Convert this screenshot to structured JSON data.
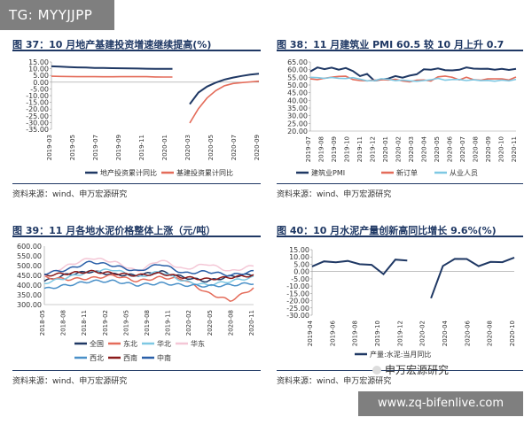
{
  "watermark_top": "TG: MYYJJPP",
  "watermark_bottom": "www.zq-bifenlive.com",
  "brand": "申万宏源研究",
  "panels": [
    {
      "title": "图 37：10 月地产基建投资增速继续提高(%)",
      "source": "资料来源：wind、申万宏源研究"
    },
    {
      "title": "图 38：11 月建筑业 PMI 60.5 较 10 月上升 0.7",
      "source": "资料来源：wind、申万宏源研究"
    },
    {
      "title": "图 39：11 月各地水泥价格整体上涨（元/吨）",
      "source": "资料来源：wind、申万宏源研究"
    },
    {
      "title": "图 40：10 月水泥产量创新高同比增长 9.6%(%)",
      "source": "资料来源：wind、申万宏源研究"
    }
  ],
  "chart_data": [
    {
      "type": "line",
      "yticks": [
        15,
        10,
        5,
        0,
        -5,
        -10,
        -15,
        -20,
        -25,
        -30,
        -35
      ],
      "ylim": [
        -35,
        15
      ],
      "xticks": [
        "2019-03",
        "2019-05",
        "2019-07",
        "2019-09",
        "2019-11",
        "2020-01",
        "2020-03",
        "2020-05",
        "2020-07",
        "2020-09"
      ],
      "series": [
        {
          "name": "地产投资累计同比",
          "color": "#1f3864",
          "values": [
            11.8,
            11.5,
            11.2,
            11.0,
            10.9,
            10.6,
            10.5,
            10.4,
            10.3,
            10.2,
            10.1,
            10.0,
            9.9,
            9.9,
            9.9,
            null,
            -16.3,
            -7.7,
            -3.3,
            -0.3,
            1.9,
            3.4,
            4.6,
            5.6,
            6.3
          ]
        },
        {
          "name": "基建投资累计同比",
          "color": "#e46c5a",
          "values": [
            4.4,
            4.3,
            4.2,
            4.1,
            4.1,
            4.1,
            4.0,
            4.0,
            4.1,
            4.1,
            4.1,
            4.1,
            3.9,
            3.8,
            3.8,
            null,
            -30.3,
            -19.7,
            -11.8,
            -6.3,
            -2.7,
            -1.0,
            -0.3,
            0.2,
            0.7
          ]
        }
      ]
    },
    {
      "type": "line",
      "yticks": [
        65,
        60,
        55,
        50,
        45,
        40,
        35,
        30,
        25,
        20
      ],
      "ylim": [
        20,
        65
      ],
      "xticks": [
        "2019-07",
        "2019-08",
        "2019-09",
        "2019-10",
        "2019-11",
        "2019-12",
        "2020-01",
        "2020-02",
        "2020-03",
        "2020-04",
        "2020-05",
        "2020-06",
        "2020-07",
        "2020-08",
        "2020-09",
        "2020-10",
        "2020-11"
      ],
      "series": [
        {
          "name": "建筑业PMI",
          "color": "#1f3864",
          "values": [
            58.8,
            61.4,
            60.3,
            61.3,
            60.0,
            61.1,
            59.1,
            55.8,
            57.2,
            52.9,
            53.5,
            54.2,
            55.8,
            54.8,
            56.1,
            57.0,
            60.2,
            60.0,
            60.8,
            59.7,
            59.5,
            59.9,
            61.4,
            60.7,
            60.5,
            60.6,
            60.0,
            60.5,
            59.8,
            60.5
          ]
        },
        {
          "name": "新订单",
          "color": "#e46c5a",
          "values": [
            54.0,
            53.5,
            54.4,
            55.1,
            55.6,
            55.7,
            53.6,
            52.9,
            52.7,
            53.1,
            53.5,
            53.3,
            53.7,
            52.6,
            52.1,
            53.1,
            53.3,
            52.6,
            55.3,
            55.8,
            55.0,
            53.3,
            55.1,
            53.5,
            53.1,
            54.0,
            54.0,
            54.0,
            53.3,
            55.2
          ]
        },
        {
          "name": "从业人员",
          "color": "#7ec8e3",
          "values": [
            55.0,
            54.8,
            54.3,
            54.9,
            54.4,
            54.2,
            54.8,
            53.8,
            52.7,
            52.9,
            54.1,
            53.7,
            52.8,
            53.2,
            52.7,
            52.4,
            52.9,
            53.4,
            54.3,
            53.1,
            53.6,
            53.6,
            52.9,
            53.4,
            52.8,
            53.0,
            52.5,
            53.2,
            52.7,
            53.7
          ]
        }
      ]
    },
    {
      "type": "line",
      "yticks": [
        600,
        550,
        500,
        450,
        400,
        350,
        300
      ],
      "ylim": [
        300,
        600
      ],
      "xticks": [
        "2018-05",
        "2018-08",
        "2018-11",
        "2019-02",
        "2019-05",
        "2019-08",
        "2019-11",
        "2020-02",
        "2020-05",
        "2020-08",
        "2020-11"
      ],
      "series": [
        {
          "name": "全国",
          "color": "#1f3864"
        },
        {
          "name": "东北",
          "color": "#e46c5a"
        },
        {
          "name": "华北",
          "color": "#7ec8e3"
        },
        {
          "name": "华东",
          "color": "#f4c7d6"
        },
        {
          "name": "西北",
          "color": "#4a90c8"
        },
        {
          "name": "西南",
          "color": "#8b1a1a"
        },
        {
          "name": "中南",
          "color": "#2a5fa8"
        }
      ]
    },
    {
      "type": "line",
      "yticks": [
        15,
        10,
        5,
        0,
        -5,
        -10,
        -15,
        -20,
        -25,
        -30
      ],
      "ylim": [
        -30,
        15
      ],
      "xticks": [
        "2019-04",
        "2019-06",
        "2019-08",
        "2019-10",
        "2019-12",
        "2020-02",
        "2020-04",
        "2020-06",
        "2020-08",
        "2020-10"
      ],
      "series": [
        {
          "name": "产量:水泥:当月同比",
          "color": "#1f3864",
          "values": [
            3.5,
            7.0,
            6.3,
            7.3,
            5.0,
            4.6,
            -1.8,
            8.2,
            7.5,
            null,
            -18.3,
            3.8,
            8.7,
            8.6,
            3.7,
            6.6,
            6.4,
            9.6
          ]
        }
      ]
    }
  ]
}
